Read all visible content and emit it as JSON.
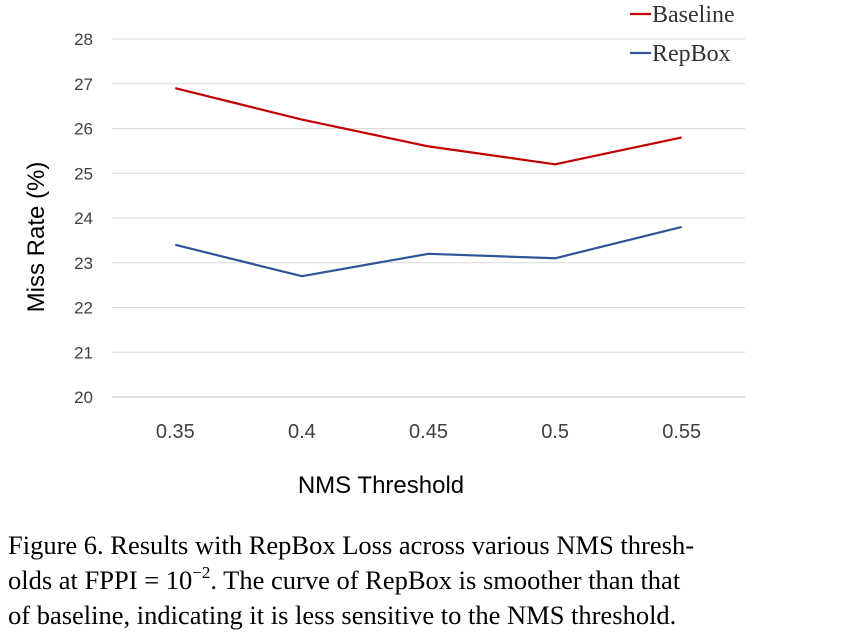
{
  "chart_data": {
    "type": "line",
    "categories": [
      "0.35",
      "0.4",
      "0.45",
      "0.5",
      "0.55"
    ],
    "series": [
      {
        "name": "Baseline",
        "values": [
          26.9,
          26.2,
          25.6,
          25.2,
          25.8
        ],
        "color": "#c00000"
      },
      {
        "name": "RepBox",
        "values": [
          23.4,
          22.7,
          23.2,
          23.1,
          23.8
        ],
        "color": "#2f5597"
      }
    ],
    "title": "",
    "xlabel": "NMS Threshold",
    "ylabel": "Miss Rate (%)",
    "ylim": [
      20,
      28
    ],
    "yticks": [
      "20",
      "21",
      "22",
      "23",
      "24",
      "25",
      "26",
      "27",
      "28"
    ],
    "grid": true,
    "legend_position": "top-right"
  },
  "caption": {
    "line1": "Figure 6. Results with RepBox Loss across various NMS thresh-",
    "line2_before": "olds at FPPI = 10",
    "line2_exp": "−2",
    "line2_after": ". The curve of RepBox is smoother than that",
    "line3": "of baseline, indicating it is less sensitive to the NMS threshold."
  }
}
